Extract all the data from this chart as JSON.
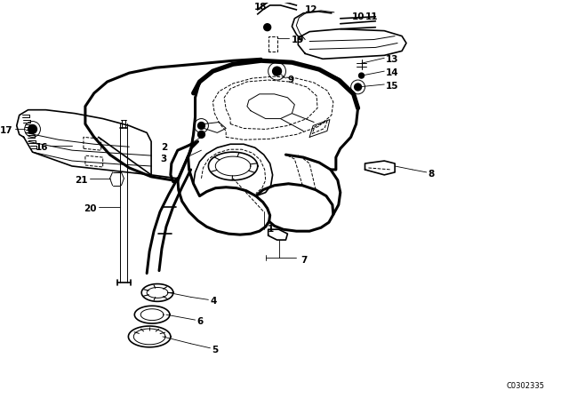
{
  "bg_color": "#ffffff",
  "line_color": "#000000",
  "diagram_code": "C0302335",
  "lw_thick": 2.2,
  "lw_main": 1.2,
  "lw_thin": 0.7,
  "lw_leader": 0.6
}
